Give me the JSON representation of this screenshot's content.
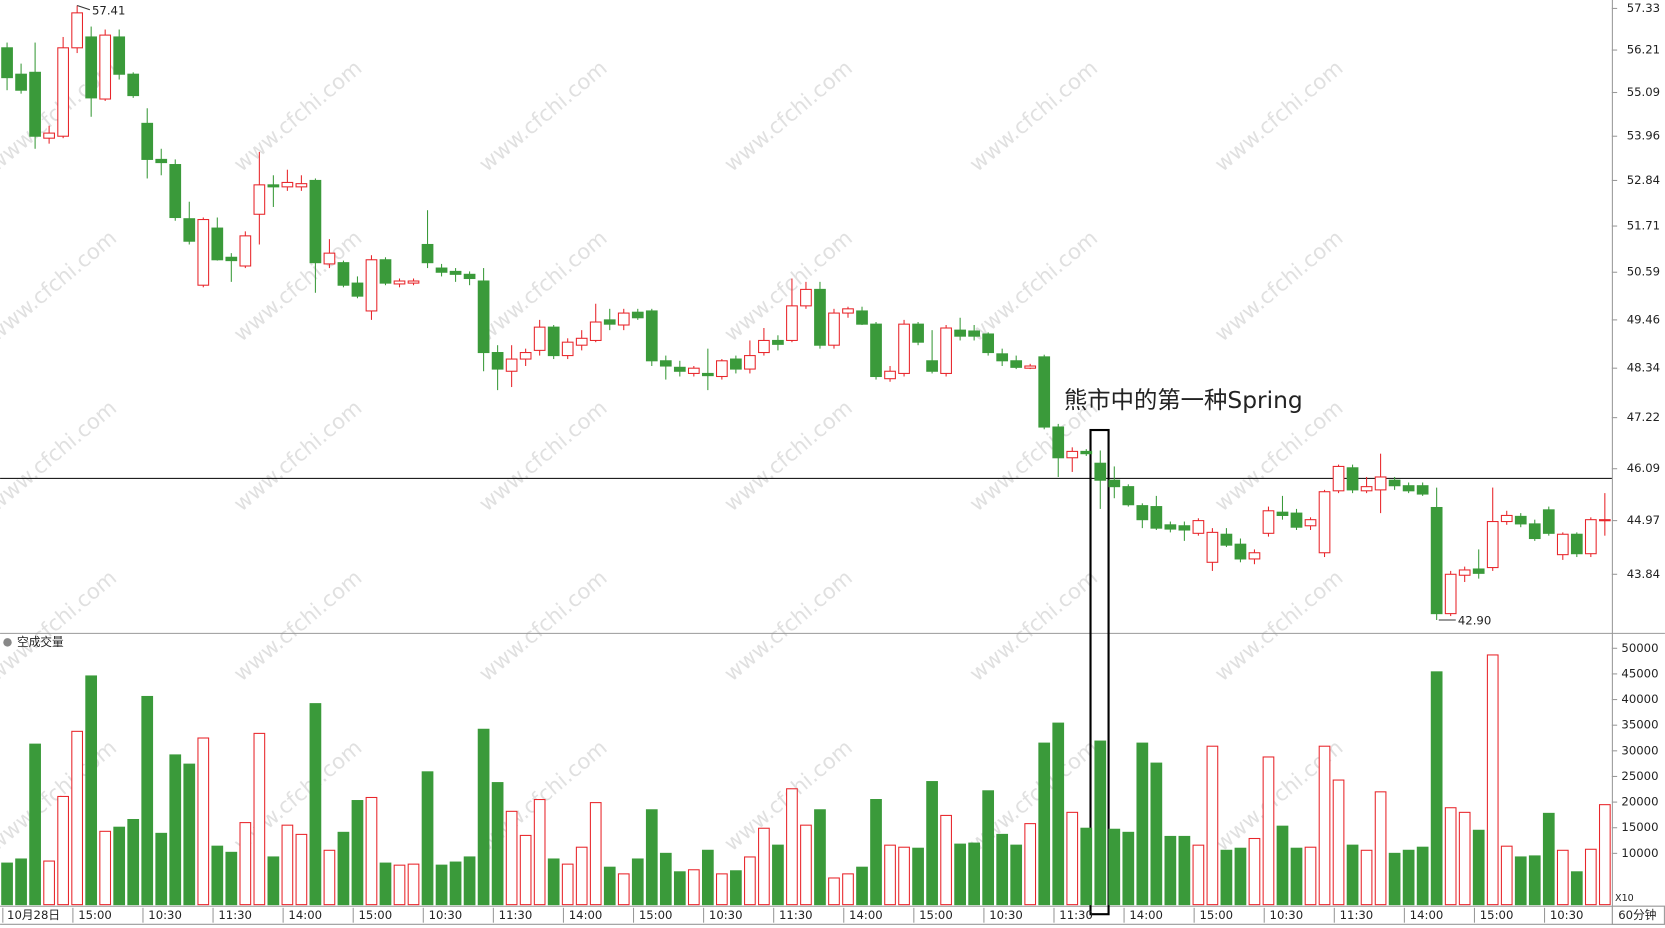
{
  "chart_data": [
    {
      "type": "candlestick",
      "period": "60分钟",
      "annotation": "熊市中的第一种Spring",
      "watermark": "www.cfchi.com",
      "log_scale": true,
      "up_color": "#e8262b",
      "down_color": "#3a9a3a",
      "ylim": [
        42.64,
        57.56
      ],
      "yticks": [
        57.33,
        56.21,
        55.09,
        53.96,
        52.84,
        51.71,
        50.59,
        49.46,
        48.34,
        47.22,
        46.09,
        44.97,
        43.84
      ],
      "reference_line": 45.88,
      "max_marker": 57.41,
      "min_marker": {
        "value": 42.9,
        "label": "42.90"
      },
      "categories": [
        "10月28日",
        null,
        null,
        null,
        null,
        "15:00",
        null,
        null,
        null,
        null,
        "10:30",
        null,
        null,
        null,
        null,
        "11:30",
        null,
        null,
        null,
        null,
        "14:00",
        null,
        null,
        null,
        null,
        "15:00",
        null,
        null,
        null,
        null,
        "10:30",
        null,
        null,
        null,
        null,
        "11:30",
        null,
        null,
        null,
        null,
        "14:00",
        null,
        null,
        null,
        null,
        "15:00",
        null,
        null,
        null,
        null,
        "10:30",
        null,
        null,
        null,
        null,
        "11:30",
        null,
        null,
        null,
        null,
        "14:00",
        null,
        null,
        null,
        null,
        "15:00",
        null,
        null,
        null,
        null,
        "10:30",
        null,
        null,
        null,
        null,
        "11:30",
        null,
        null,
        null,
        null,
        "14:00",
        null,
        null,
        null,
        null,
        "15:00",
        null,
        null,
        null,
        null,
        "10:30",
        null,
        null,
        null,
        null,
        "11:30",
        null,
        null,
        null,
        null,
        "14:00",
        null,
        null,
        null,
        null,
        "15:00",
        null,
        null,
        null,
        null,
        "10:30",
        null,
        null,
        null,
        null
      ],
      "ohlc": [
        [
          56.27,
          56.41,
          55.15,
          55.48
        ],
        [
          55.57,
          55.85,
          55.06,
          55.15
        ],
        [
          55.62,
          56.41,
          53.64,
          53.96
        ],
        [
          53.91,
          54.23,
          53.77,
          54.04
        ],
        [
          53.96,
          56.56,
          53.91,
          56.27
        ],
        [
          56.27,
          57.41,
          56.13,
          57.21
        ],
        [
          56.56,
          56.84,
          54.46,
          54.95
        ],
        [
          54.92,
          56.76,
          54.87,
          56.61
        ],
        [
          56.56,
          56.76,
          55.43,
          55.57
        ],
        [
          55.57,
          55.62,
          54.95,
          55.01
        ],
        [
          54.29,
          54.68,
          52.89,
          53.37
        ],
        [
          53.37,
          53.64,
          52.97,
          53.29
        ],
        [
          53.24,
          53.37,
          51.84,
          51.92
        ],
        [
          51.89,
          52.31,
          51.26,
          51.34
        ],
        [
          50.28,
          51.92,
          50.23,
          51.87
        ],
        [
          51.66,
          51.92,
          50.87,
          50.89
        ],
        [
          50.95,
          51.05,
          50.36,
          50.87
        ],
        [
          50.74,
          51.58,
          50.69,
          51.47
        ],
        [
          52.0,
          53.56,
          51.26,
          52.73
        ],
        [
          52.73,
          52.97,
          52.18,
          52.68
        ],
        [
          52.68,
          53.11,
          52.58,
          52.79
        ],
        [
          52.68,
          52.97,
          52.58,
          52.76
        ],
        [
          52.84,
          52.89,
          50.1,
          50.82
        ],
        [
          50.79,
          51.39,
          50.69,
          51.05
        ],
        [
          50.82,
          50.87,
          50.23,
          50.28
        ],
        [
          50.33,
          50.49,
          49.97,
          50.02
        ],
        [
          49.67,
          51.0,
          49.46,
          50.89
        ],
        [
          50.89,
          50.95,
          50.28,
          50.33
        ],
        [
          50.31,
          50.44,
          50.23,
          50.38
        ],
        [
          50.33,
          50.44,
          50.28,
          50.38
        ],
        [
          51.26,
          52.1,
          50.69,
          50.82
        ],
        [
          50.69,
          50.79,
          50.49,
          50.59
        ],
        [
          50.61,
          50.69,
          50.36,
          50.54
        ],
        [
          50.54,
          50.61,
          50.28,
          50.44
        ],
        [
          50.38,
          50.69,
          48.27,
          48.7
        ],
        [
          48.7,
          48.87,
          47.84,
          48.32
        ],
        [
          48.27,
          48.87,
          47.91,
          48.55
        ],
        [
          48.55,
          48.79,
          48.39,
          48.7
        ],
        [
          48.75,
          49.46,
          48.63,
          49.29
        ],
        [
          49.29,
          49.34,
          48.55,
          48.63
        ],
        [
          48.63,
          49.03,
          48.55,
          48.94
        ],
        [
          48.87,
          49.22,
          48.75,
          49.03
        ],
        [
          48.98,
          49.84,
          48.94,
          49.41
        ],
        [
          49.46,
          49.72,
          49.22,
          49.36
        ],
        [
          49.34,
          49.72,
          49.22,
          49.62
        ],
        [
          49.64,
          49.72,
          49.46,
          49.51
        ],
        [
          49.67,
          49.72,
          48.39,
          48.51
        ],
        [
          48.51,
          48.63,
          48.08,
          48.39
        ],
        [
          48.36,
          48.51,
          48.15,
          48.27
        ],
        [
          48.22,
          48.39,
          48.15,
          48.34
        ],
        [
          48.22,
          48.79,
          47.84,
          48.17
        ],
        [
          48.15,
          48.55,
          48.08,
          48.51
        ],
        [
          48.55,
          48.63,
          48.22,
          48.32
        ],
        [
          48.32,
          48.98,
          48.22,
          48.63
        ],
        [
          48.7,
          49.27,
          48.63,
          48.98
        ],
        [
          48.98,
          49.1,
          48.75,
          48.89
        ],
        [
          48.98,
          50.44,
          48.94,
          49.79
        ],
        [
          49.79,
          50.36,
          49.72,
          50.18
        ],
        [
          50.18,
          50.36,
          48.79,
          48.87
        ],
        [
          48.87,
          49.72,
          48.79,
          49.62
        ],
        [
          49.62,
          49.77,
          49.51,
          49.72
        ],
        [
          49.67,
          49.77,
          49.34,
          49.36
        ],
        [
          49.36,
          49.41,
          48.08,
          48.15
        ],
        [
          48.1,
          48.39,
          48.03,
          48.27
        ],
        [
          48.22,
          49.46,
          48.15,
          49.36
        ],
        [
          49.36,
          49.41,
          48.87,
          48.94
        ],
        [
          48.51,
          49.22,
          48.22,
          48.27
        ],
        [
          48.22,
          49.34,
          48.15,
          49.27
        ],
        [
          49.22,
          49.51,
          48.98,
          49.08
        ],
        [
          49.2,
          49.34,
          48.98,
          49.08
        ],
        [
          49.13,
          49.17,
          48.63,
          48.7
        ],
        [
          48.67,
          48.79,
          48.39,
          48.51
        ],
        [
          48.51,
          48.63,
          48.32,
          48.36
        ],
        [
          48.34,
          48.44,
          48.32,
          48.39
        ],
        [
          48.6,
          48.65,
          46.96,
          47.01
        ],
        [
          47.01,
          47.08,
          45.91,
          46.33
        ],
        [
          46.33,
          46.56,
          46.02,
          46.47
        ],
        [
          46.47,
          46.52,
          46.37,
          46.42
        ],
        [
          46.21,
          46.49,
          45.22,
          45.84
        ],
        [
          45.84,
          46.14,
          45.45,
          45.7
        ],
        [
          45.7,
          45.75,
          45.27,
          45.31
        ],
        [
          45.29,
          45.34,
          44.81,
          44.99
        ],
        [
          45.27,
          45.5,
          44.77,
          44.81
        ],
        [
          44.88,
          44.95,
          44.72,
          44.79
        ],
        [
          44.86,
          44.95,
          44.54,
          44.77
        ],
        [
          44.7,
          45.02,
          44.65,
          44.97
        ],
        [
          44.09,
          44.81,
          43.91,
          44.72
        ],
        [
          44.68,
          44.81,
          44.41,
          44.45
        ],
        [
          44.47,
          44.59,
          44.09,
          44.16
        ],
        [
          44.16,
          44.36,
          44.05,
          44.29
        ],
        [
          44.7,
          45.27,
          44.63,
          45.18
        ],
        [
          45.15,
          45.5,
          44.99,
          45.08
        ],
        [
          45.13,
          45.22,
          44.77,
          44.83
        ],
        [
          44.86,
          45.04,
          44.77,
          44.99
        ],
        [
          44.29,
          45.63,
          44.2,
          45.59
        ],
        [
          45.61,
          46.18,
          45.56,
          46.14
        ],
        [
          46.11,
          46.18,
          45.56,
          45.63
        ],
        [
          45.61,
          45.91,
          45.56,
          45.7
        ],
        [
          45.63,
          46.42,
          45.13,
          45.91
        ],
        [
          45.84,
          45.91,
          45.63,
          45.72
        ],
        [
          45.72,
          45.79,
          45.56,
          45.61
        ],
        [
          45.72,
          45.79,
          45.5,
          45.54
        ],
        [
          45.25,
          45.68,
          42.9,
          43.03
        ],
        [
          43.03,
          43.91,
          42.98,
          43.84
        ],
        [
          43.82,
          44.0,
          43.68,
          43.93
        ],
        [
          43.95,
          44.36,
          43.75,
          43.86
        ],
        [
          43.98,
          45.68,
          43.91,
          44.95
        ],
        [
          44.95,
          45.18,
          44.88,
          45.08
        ],
        [
          45.06,
          45.13,
          44.83,
          44.9
        ],
        [
          44.9,
          44.99,
          44.54,
          44.59
        ],
        [
          45.2,
          45.27,
          44.65,
          44.7
        ],
        [
          44.25,
          44.72,
          44.14,
          44.68
        ],
        [
          44.68,
          44.72,
          44.2,
          44.27
        ],
        [
          44.27,
          45.04,
          44.2,
          44.99
        ],
        [
          44.97,
          45.56,
          44.65,
          44.99
        ]
      ]
    },
    {
      "type": "volume",
      "title": "空成交量",
      "unit_note": "X10",
      "ylim": [
        0,
        52600
      ],
      "yticks": [
        50000,
        45000,
        40000,
        35000,
        30000,
        25000,
        20000,
        15000,
        10000
      ],
      "values": [
        8100,
        8900,
        31300,
        8500,
        21100,
        33800,
        44600,
        14300,
        15100,
        16600,
        40600,
        13900,
        29200,
        27400,
        32500,
        11400,
        10200,
        16000,
        33400,
        9300,
        15500,
        13700,
        39200,
        10600,
        14100,
        20300,
        20900,
        8100,
        7700,
        7900,
        25900,
        7700,
        8300,
        9300,
        34200,
        23800,
        18200,
        13500,
        20500,
        8900,
        7900,
        11200,
        19900,
        7300,
        6000,
        8900,
        18500,
        10000,
        6400,
        6800,
        10600,
        6000,
        6600,
        9300,
        14900,
        11600,
        22600,
        15500,
        18500,
        5200,
        6000,
        7300,
        20500,
        11600,
        11200,
        11000,
        24000,
        17400,
        11800,
        12000,
        22200,
        13700,
        11600,
        15800,
        31500,
        35400,
        18000,
        14900,
        31900,
        14700,
        14100,
        31500,
        27600,
        13300,
        13300,
        11600,
        30900,
        10600,
        11000,
        12900,
        28800,
        15300,
        11000,
        11200,
        30900,
        24300,
        11600,
        10600,
        22000,
        10000,
        10600,
        11200,
        45400,
        18900,
        18000,
        14500,
        48700,
        11400,
        9300,
        9500,
        17800,
        10600,
        6400,
        10800,
        19500
      ]
    }
  ]
}
